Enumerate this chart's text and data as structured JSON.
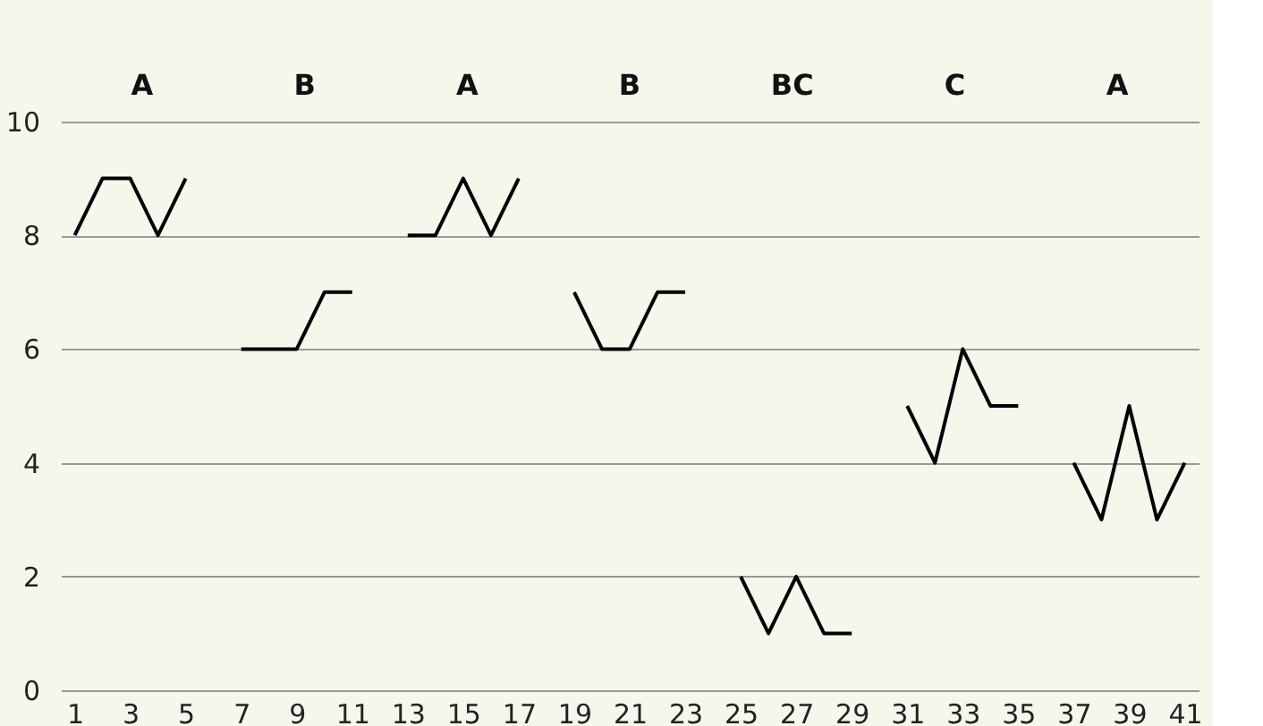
{
  "chart_data": {
    "type": "line",
    "x": [
      1,
      2,
      3,
      4,
      5,
      6,
      7,
      8,
      9,
      10,
      11,
      12,
      13,
      14,
      15,
      16,
      17,
      18,
      19,
      20,
      21,
      22,
      23,
      24,
      25,
      26,
      27,
      28,
      29,
      30,
      31,
      32,
      33,
      34,
      35,
      36,
      37,
      38,
      39,
      40,
      41
    ],
    "series": [
      {
        "color": "#000000",
        "values": [
          8,
          9,
          9,
          8,
          9,
          null,
          6,
          6,
          6,
          7,
          7,
          null,
          8,
          8,
          9,
          8,
          9,
          null,
          7,
          6,
          6,
          7,
          7,
          null,
          2,
          1,
          2,
          1,
          1,
          null,
          5,
          4,
          6,
          5,
          5,
          null,
          4,
          3,
          5,
          3,
          4
        ]
      }
    ],
    "xlim": [
      0.5,
      41.5
    ],
    "xticks": [
      1,
      3,
      5,
      7,
      9,
      11,
      13,
      15,
      17,
      19,
      21,
      23,
      25,
      27,
      29,
      31,
      33,
      35,
      37,
      39,
      41
    ],
    "ylim": [
      0,
      10
    ],
    "yticks": [
      0,
      2,
      4,
      6,
      8,
      10
    ],
    "grid": "y",
    "marker": "none",
    "line_style": "solid",
    "legend": false,
    "annotations": [
      "A",
      "B",
      "A",
      "B",
      "BC",
      "C",
      "A"
    ]
  }
}
